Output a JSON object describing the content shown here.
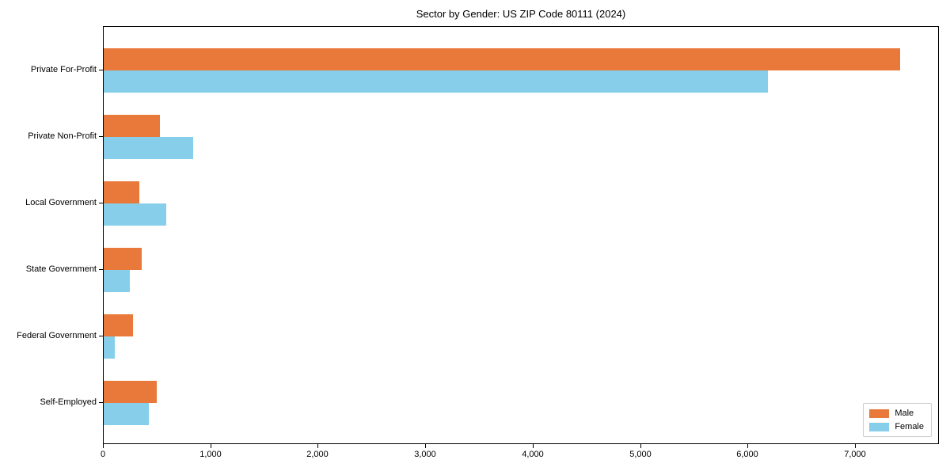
{
  "chart_data": {
    "type": "bar",
    "orientation": "horizontal",
    "title": "Sector by Gender: US ZIP Code 80111 (2024)",
    "categories": [
      "Private For-Profit",
      "Private Non-Profit",
      "Local Government",
      "State Government",
      "Federal Government",
      "Self-Employed"
    ],
    "series": [
      {
        "name": "Male",
        "color": "#E8793A",
        "values": [
          7410,
          520,
          330,
          355,
          275,
          490
        ]
      },
      {
        "name": "Female",
        "color": "#87CEEB",
        "values": [
          6180,
          835,
          580,
          240,
          105,
          420
        ]
      }
    ],
    "xlabel": "",
    "ylabel": "",
    "xlim": [
      0,
      7780
    ],
    "x_ticks": [
      {
        "value": 0,
        "label": "0"
      },
      {
        "value": 1000,
        "label": "1,000"
      },
      {
        "value": 2000,
        "label": "2,000"
      },
      {
        "value": 3000,
        "label": "3,000"
      },
      {
        "value": 4000,
        "label": "4,000"
      },
      {
        "value": 5000,
        "label": "5,000"
      },
      {
        "value": 6000,
        "label": "6,000"
      },
      {
        "value": 7000,
        "label": "7,000"
      }
    ],
    "grid": false,
    "legend_position": "lower right"
  }
}
